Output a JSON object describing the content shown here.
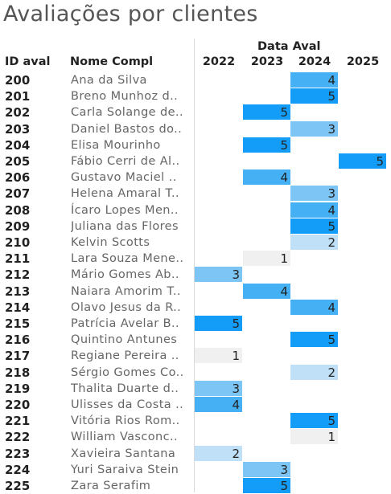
{
  "title": "Avaliações por clientes",
  "columns": {
    "id": "ID aval",
    "name": "Nome Compl",
    "group": "Data Aval"
  },
  "chart_data": {
    "type": "heatmap",
    "years": [
      "2022",
      "2023",
      "2024",
      "2025"
    ],
    "colors": {
      "1": "#f0f0f0",
      "2": "#bfe0f7",
      "3": "#7cc5f5",
      "4": "#45b0f4",
      "5": "#139cf8"
    },
    "rows": [
      {
        "id": "200",
        "name": "Ana da Silva",
        "year": "2024",
        "value": 4
      },
      {
        "id": "201",
        "name": "Breno Munhoz d..",
        "year": "2024",
        "value": 5
      },
      {
        "id": "202",
        "name": "Carla Solange de..",
        "year": "2023",
        "value": 5
      },
      {
        "id": "203",
        "name": "Daniel Bastos do..",
        "year": "2024",
        "value": 3
      },
      {
        "id": "204",
        "name": "Elisa Mourinho",
        "year": "2023",
        "value": 5
      },
      {
        "id": "205",
        "name": "Fábio Cerri de Al..",
        "year": "2025",
        "value": 5
      },
      {
        "id": "206",
        "name": "Gustavo Maciel ..",
        "year": "2023",
        "value": 4
      },
      {
        "id": "207",
        "name": "Helena Amaral T..",
        "year": "2024",
        "value": 3
      },
      {
        "id": "208",
        "name": "Ícaro Lopes Men..",
        "year": "2024",
        "value": 4
      },
      {
        "id": "209",
        "name": "Juliana das Flores",
        "year": "2024",
        "value": 5
      },
      {
        "id": "210",
        "name": "Kelvin Scotts",
        "year": "2024",
        "value": 2
      },
      {
        "id": "211",
        "name": "Lara Souza Mene..",
        "year": "2023",
        "value": 1
      },
      {
        "id": "212",
        "name": "Mário Gomes Ab..",
        "year": "2022",
        "value": 3
      },
      {
        "id": "213",
        "name": "Naiara Amorim T..",
        "year": "2023",
        "value": 4
      },
      {
        "id": "214",
        "name": "Olavo Jesus da R..",
        "year": "2024",
        "value": 4
      },
      {
        "id": "215",
        "name": "Patrícia Avelar B..",
        "year": "2022",
        "value": 5
      },
      {
        "id": "216",
        "name": "Quintino Antunes",
        "year": "2024",
        "value": 5
      },
      {
        "id": "217",
        "name": "Regiane Pereira ..",
        "year": "2022",
        "value": 1
      },
      {
        "id": "218",
        "name": "Sérgio Gomes Co..",
        "year": "2024",
        "value": 2
      },
      {
        "id": "219",
        "name": "Thalita Duarte d..",
        "year": "2022",
        "value": 3
      },
      {
        "id": "220",
        "name": "Ulisses da Costa ..",
        "year": "2022",
        "value": 4
      },
      {
        "id": "221",
        "name": "Vitória Rios Rom..",
        "year": "2024",
        "value": 5
      },
      {
        "id": "222",
        "name": "William Vasconc..",
        "year": "2024",
        "value": 1
      },
      {
        "id": "223",
        "name": "Xavieira Santana",
        "year": "2022",
        "value": 2
      },
      {
        "id": "224",
        "name": "Yuri Saraiva Stein",
        "year": "2023",
        "value": 3
      },
      {
        "id": "225",
        "name": "Zara Serafim",
        "year": "2023",
        "value": 5
      }
    ]
  }
}
